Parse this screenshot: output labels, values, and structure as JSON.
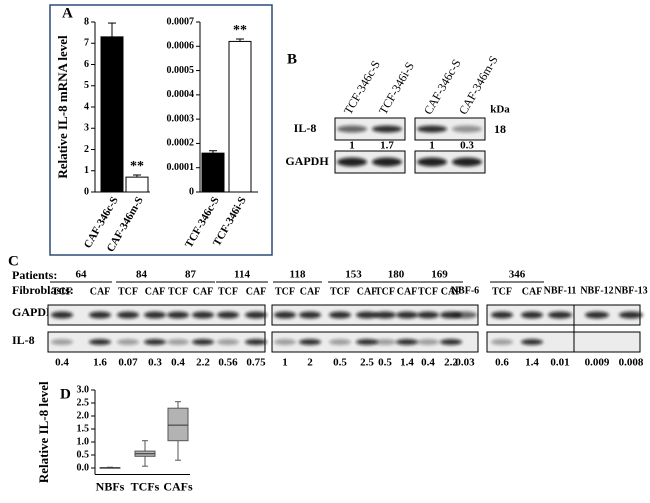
{
  "panel_labels": [
    "A",
    "B",
    "C",
    "D"
  ],
  "chart_data": [
    {
      "type": "bar",
      "ylabel": "Relative IL-8 mRNA level",
      "categories": [
        "CAF-346c-S",
        "CAF-346m-S"
      ],
      "values": [
        7.3,
        0.7
      ],
      "errors": [
        0.65,
        0.1
      ],
      "colors": [
        "#000000",
        "#ffffff"
      ],
      "ylim": [
        0,
        8
      ],
      "yticks": [
        0,
        1,
        2,
        3,
        4,
        5,
        6,
        7,
        8
      ],
      "annotation": "**"
    },
    {
      "type": "bar",
      "categories": [
        "TCF-346c-S",
        "TCF-346i-S"
      ],
      "values": [
        0.00016,
        0.00062
      ],
      "errors": [
        1e-05,
        1e-05
      ],
      "colors": [
        "#000000",
        "#ffffff"
      ],
      "ylim": [
        0,
        0.0007
      ],
      "yticks": [
        0,
        0.0001,
        0.0002,
        0.0003,
        0.0004,
        0.0005,
        0.0006,
        0.0007
      ],
      "annotation": "**"
    },
    {
      "type": "box",
      "ylabel": "Relative IL-8 level",
      "categories": [
        "NBFs",
        "TCFs",
        "CAFs"
      ],
      "stats": [
        {
          "min": 0.0,
          "q1": 0.0,
          "median": 0.01,
          "q3": 0.01,
          "max": 0.03
        },
        {
          "min": 0.07,
          "q1": 0.45,
          "median": 0.55,
          "q3": 0.65,
          "max": 1.05
        },
        {
          "min": 0.3,
          "q1": 1.05,
          "median": 1.65,
          "q3": 2.3,
          "max": 2.55
        }
      ],
      "color": "#b3b3b3",
      "ylim": [
        -0.25,
        3.0
      ],
      "yticks": [
        {
          "value": 0,
          "label": "0.0"
        },
        {
          "value": 0.5,
          "label": "0.5"
        },
        {
          "value": 1,
          "label": "1.0"
        },
        {
          "value": 1.5,
          "label": "1.5"
        },
        {
          "value": 2,
          "label": "2.0"
        },
        {
          "value": 2.5,
          "label": "2.5"
        },
        {
          "value": 3,
          "label": "3.0"
        }
      ]
    }
  ],
  "panel_b": {
    "lanes": [
      "TCF-346c-S",
      "TCF-346i-S",
      "CAF-346c-S",
      "CAF-346m-S"
    ],
    "kda_label": "kDa",
    "marker": "18",
    "rows": [
      "IL-8",
      "GAPDH"
    ],
    "ratios": [
      1,
      1.7,
      1,
      0.3
    ]
  },
  "panel_c": {
    "patients_label": "Patients:",
    "fibroblasts_label": "Fibroblasts:",
    "rows": [
      "GAPDH",
      "IL-8"
    ],
    "groups": [
      {
        "patient": "64",
        "fibroblasts": [
          "TCF",
          "CAF"
        ],
        "ratios": [
          0.4,
          1.6
        ]
      },
      {
        "patient": "84",
        "fibroblasts": [
          "TCF",
          "CAF"
        ],
        "ratios": [
          0.07,
          0.3
        ]
      },
      {
        "patient": "87",
        "fibroblasts": [
          "TCF",
          "CAF"
        ],
        "ratios": [
          0.4,
          2.2
        ]
      },
      {
        "patient": "114",
        "fibroblasts": [
          "TCF",
          "CAF"
        ],
        "ratios": [
          0.56,
          0.75
        ]
      },
      {
        "patient": "118",
        "fibroblasts": [
          "TCF",
          "CAF"
        ],
        "ratios": [
          1,
          2
        ]
      },
      {
        "patient": "153",
        "fibroblasts": [
          "TCF",
          "CAF"
        ],
        "ratios": [
          0.5,
          2.5
        ]
      },
      {
        "patient": "180",
        "fibroblasts": [
          "TCF",
          "CAF"
        ],
        "ratios": [
          0.5,
          1.4
        ]
      },
      {
        "patient": "169",
        "fibroblasts": [
          "TCF",
          "CAF"
        ],
        "ratios": [
          0.4,
          2.2
        ]
      },
      {
        "patient": "346",
        "fibroblasts": [
          "TCF",
          "CAF"
        ],
        "ratios": [
          0.6,
          1.4
        ]
      }
    ],
    "normals": [
      {
        "name": "NBF-6",
        "ratio": 0.03
      },
      {
        "name": "NBF-11",
        "ratio": 0.01
      },
      {
        "name": "NBF-12",
        "ratio": 0.009
      },
      {
        "name": "NBF-13",
        "ratio": 0.008
      }
    ]
  }
}
